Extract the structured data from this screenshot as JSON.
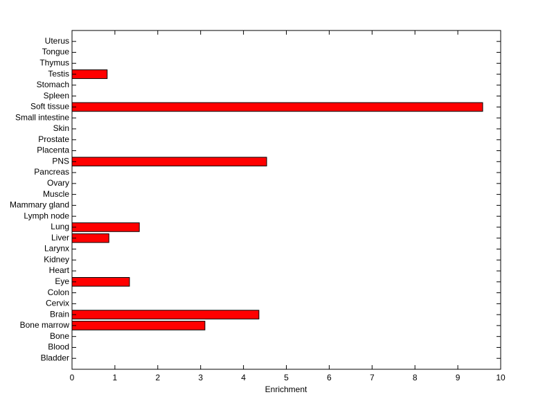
{
  "chart_data": {
    "type": "barh",
    "x_label": "Enrichment",
    "categories": [
      "Bladder",
      "Blood",
      "Bone",
      "Bone marrow",
      "Brain",
      "Cervix",
      "Colon",
      "Eye",
      "Heart",
      "Kidney",
      "Larynx",
      "Liver",
      "Lung",
      "Lymph node",
      "Mammary gland",
      "Muscle",
      "Ovary",
      "Pancreas",
      "PNS",
      "Placenta",
      "Prostate",
      "Skin",
      "Small intestine",
      "Soft tissue",
      "Spleen",
      "Stomach",
      "Testis",
      "Thymus",
      "Tongue",
      "Uterus"
    ],
    "values": [
      0,
      0,
      0,
      3.1,
      4.36,
      0,
      0,
      1.34,
      0,
      0,
      0,
      0.86,
      1.57,
      0,
      0,
      0,
      0,
      0,
      4.54,
      0,
      0,
      0,
      0,
      9.58,
      0,
      0,
      0.82,
      0,
      0,
      0
    ],
    "color": "#ff0000",
    "xlim": [
      0,
      10
    ],
    "xticks": [
      0,
      1,
      2,
      3,
      4,
      5,
      6,
      7,
      8,
      9,
      10
    ]
  }
}
